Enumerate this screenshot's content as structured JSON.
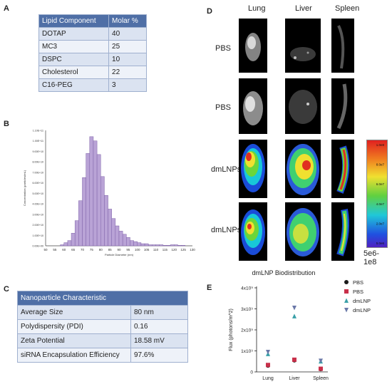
{
  "panels": {
    "A": "A",
    "B": "B",
    "C": "C",
    "D": "D",
    "E": "E"
  },
  "table_a": {
    "headers": [
      "Lipid  Component",
      "Molar %"
    ],
    "rows": [
      [
        "DOTAP",
        "40"
      ],
      [
        "MC3",
        "25"
      ],
      [
        "DSPC",
        "10"
      ],
      [
        "Cholesterol",
        "22"
      ],
      [
        "C16-PEG",
        "3"
      ]
    ]
  },
  "table_c": {
    "header": "Nanoparticle Characteristic",
    "rows": [
      [
        "Average Size",
        "80 nm"
      ],
      [
        "Polydispersity (PDI)",
        "0.16"
      ],
      [
        "Zeta Potential",
        "18.58 mV"
      ],
      [
        "siRNA Encapsulation Efficiency",
        "97.6%"
      ]
    ]
  },
  "imaging": {
    "columns": [
      "Lung",
      "Liver",
      "Spleen"
    ],
    "rows": [
      "PBS",
      "PBS",
      "dmLNPs",
      "dmLNPs"
    ],
    "colorbar_ticks": [
      "1.0e8",
      "8.0e7",
      "6.0e7",
      "4.0e7",
      "2.0e7",
      "5.0e6"
    ],
    "colorbar_label": "5e6-1e8"
  },
  "chart_data": [
    {
      "type": "bar",
      "xlabel": "Particle Diameter (nm)",
      "ylabel": "Concentration (particles/mL)",
      "x_ticks": [
        "50",
        "55",
        "60",
        "65",
        "70",
        "75",
        "80",
        "85",
        "90",
        "95",
        "100",
        "105",
        "110",
        "115",
        "120",
        "125",
        "130"
      ],
      "y_ticks": [
        "0.00E+00",
        "1.00E+10",
        "2.00E+10",
        "3.00E+10",
        "4.00E+10",
        "5.00E+10",
        "6.00E+10",
        "7.00E+10",
        "8.00E+10",
        "9.00E+10",
        "1.00E+11",
        "1.10E+11"
      ],
      "ylim": [
        0,
        110000000000.0
      ],
      "xlim": [
        50,
        130
      ],
      "bin_width": 2,
      "bins_start": [
        58,
        60,
        62,
        64,
        66,
        68,
        70,
        72,
        74,
        76,
        78,
        80,
        82,
        84,
        86,
        88,
        90,
        92,
        94,
        96,
        98,
        100,
        102,
        104,
        106,
        108,
        110,
        112,
        114,
        116,
        118,
        120,
        122,
        124
      ],
      "values": [
        1000000000.0,
        3000000000.0,
        5000000000.0,
        12000000000.0,
        24000000000.0,
        43000000000.0,
        65000000000.0,
        88000000000.0,
        104000000000.0,
        100000000000.0,
        87000000000.0,
        66000000000.0,
        48000000000.0,
        35000000000.0,
        26000000000.0,
        19000000000.0,
        14000000000.0,
        11000000000.0,
        8000000000.0,
        5000000000.0,
        4000000000.0,
        3000000000.0,
        2000000000.0,
        2000000000.0,
        1000000000.0,
        1000000000.0,
        1000000000.0,
        1000000000.0,
        500000000.0,
        500000000.0,
        1000000000.0,
        1000000000.0,
        500000000.0,
        500000000.0
      ],
      "bar_color": "#b9a3d6"
    },
    {
      "type": "scatter",
      "title": "dmLNP Biodistribution",
      "ylabel": "Flux  (photons/m^2)",
      "categories": [
        "Lung",
        "Liver",
        "Spleen"
      ],
      "y_ticks": [
        "0",
        "1x10⁹",
        "2x10⁹",
        "3x10⁹",
        "4x10⁹"
      ],
      "ylim": [
        0,
        4000000000.0
      ],
      "legend_position": "right",
      "series": [
        {
          "name": "PBS",
          "marker": "circle",
          "color": "#1a1a1a",
          "values": [
            300000000.0,
            550000000.0,
            130000000.0
          ]
        },
        {
          "name": "PBS",
          "marker": "square",
          "color": "#c8304a",
          "values": [
            330000000.0,
            580000000.0,
            150000000.0
          ]
        },
        {
          "name": "dmLNP",
          "marker": "triangle-up",
          "color": "#3aa0a8",
          "values": [
            850000000.0,
            2650000000.0,
            500000000.0
          ]
        },
        {
          "name": "dmLNP",
          "marker": "triangle-down",
          "color": "#6a78a8",
          "values": [
            950000000.0,
            3050000000.0,
            530000000.0
          ]
        }
      ]
    }
  ]
}
